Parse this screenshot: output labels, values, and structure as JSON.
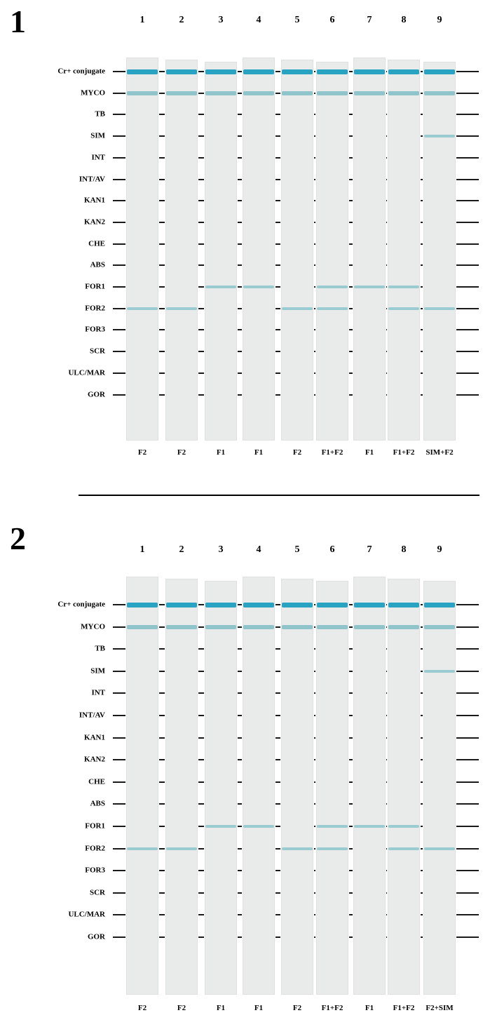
{
  "panels": [
    {
      "number": "1",
      "lane_numbers": [
        "1",
        "2",
        "3",
        "4",
        "5",
        "6",
        "7",
        "8",
        "9"
      ],
      "probes": [
        "Cr+ conjugate",
        "MYCO",
        "TB",
        "SIM",
        "INT",
        "INT/AV",
        "KAN1",
        "KAN2",
        "CHE",
        "ABS",
        "FOR1",
        "FOR2",
        "FOR3",
        "SCR",
        "ULC/MAR",
        "GOR"
      ],
      "samples": [
        "F2",
        "F2",
        "F1",
        "F1",
        "F2",
        "F1+F2",
        "F1",
        "F1+F2",
        "SIM+F2"
      ],
      "bands": [
        [
          "Cr+ conjugate",
          "MYCO",
          "FOR2"
        ],
        [
          "Cr+ conjugate",
          "MYCO",
          "FOR2"
        ],
        [
          "Cr+ conjugate",
          "MYCO",
          "FOR1"
        ],
        [
          "Cr+ conjugate",
          "MYCO",
          "FOR1"
        ],
        [
          "Cr+ conjugate",
          "MYCO",
          "FOR2"
        ],
        [
          "Cr+ conjugate",
          "MYCO",
          "FOR1",
          "FOR2"
        ],
        [
          "Cr+ conjugate",
          "MYCO",
          "FOR1"
        ],
        [
          "Cr+ conjugate",
          "MYCO",
          "FOR1",
          "FOR2"
        ],
        [
          "Cr+ conjugate",
          "MYCO",
          "SIM",
          "FOR2"
        ]
      ]
    },
    {
      "number": "2",
      "lane_numbers": [
        "1",
        "2",
        "3",
        "4",
        "5",
        "6",
        "7",
        "8",
        "9"
      ],
      "probes": [
        "Cr+ conjugate",
        "MYCO",
        "TB",
        "SIM",
        "INT",
        "INT/AV",
        "KAN1",
        "KAN2",
        "CHE",
        "ABS",
        "FOR1",
        "FOR2",
        "FOR3",
        "SCR",
        "ULC/MAR",
        "GOR"
      ],
      "samples": [
        "F2",
        "F2",
        "F1",
        "F1",
        "F2",
        "F1+F2",
        "F1",
        "F1+F2",
        "F2+SIM"
      ],
      "bands": [
        [
          "Cr+ conjugate",
          "MYCO",
          "FOR2"
        ],
        [
          "Cr+ conjugate",
          "MYCO",
          "FOR2"
        ],
        [
          "Cr+ conjugate",
          "MYCO",
          "FOR1"
        ],
        [
          "Cr+ conjugate",
          "MYCO",
          "FOR1"
        ],
        [
          "Cr+ conjugate",
          "MYCO",
          "FOR2"
        ],
        [
          "Cr+ conjugate",
          "MYCO",
          "FOR1",
          "FOR2"
        ],
        [
          "Cr+ conjugate",
          "MYCO",
          "FOR1"
        ],
        [
          "Cr+ conjugate",
          "MYCO",
          "FOR1",
          "FOR2"
        ],
        [
          "Cr+ conjugate",
          "MYCO",
          "SIM",
          "FOR2"
        ]
      ]
    }
  ],
  "colors": {
    "conjugate_band": "#1f9fc0",
    "myco_band": "#6fb7bf",
    "weak_band": "#8cc6cc",
    "strip": "#e9ebea",
    "guide_line": "#1a1a1a"
  }
}
